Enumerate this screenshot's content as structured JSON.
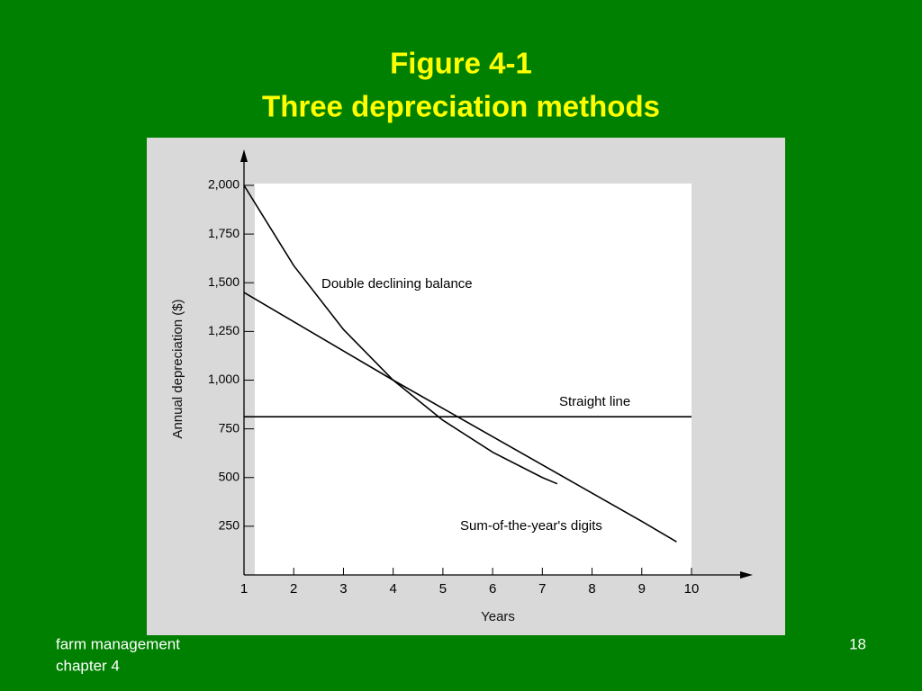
{
  "slide": {
    "title": [
      "Figure 4-1",
      "Three depreciation methods"
    ],
    "footer": [
      "farm management",
      "chapter 4"
    ],
    "page_number": 18
  },
  "chart_data": {
    "type": "line",
    "xlabel": "Years",
    "ylabel": "Annual depreciation ($)",
    "xlim": [
      1,
      10
    ],
    "ylim": [
      0,
      2000
    ],
    "xticks": [
      1,
      2,
      3,
      4,
      5,
      6,
      7,
      8,
      9,
      10
    ],
    "yticks": [
      250,
      500,
      750,
      {
        "value": 1000,
        "label": "1,000"
      },
      {
        "value": 1250,
        "label": "1,250"
      },
      {
        "value": 1500,
        "label": "1,500"
      },
      {
        "value": 1750,
        "label": "1,750"
      },
      {
        "value": 2000,
        "label": "2,000"
      }
    ],
    "series": [
      {
        "name": "Double declining balance",
        "color": "#000000",
        "x": [
          1,
          2,
          3,
          4,
          5,
          6,
          7,
          7.3
        ],
        "values": [
          2000,
          1588,
          1260,
          1000,
          794,
          630,
          500,
          468
        ]
      },
      {
        "name": "Straight line",
        "color": "#000000",
        "x": [
          1,
          10
        ],
        "values": [
          812,
          812
        ]
      },
      {
        "name": "Sum-of-the-year's digits",
        "color": "#000000",
        "x": [
          1,
          2,
          3,
          4,
          5,
          6,
          7,
          8,
          9,
          9.7
        ],
        "values": [
          1450,
          1300,
          1150,
          1000,
          855,
          710,
          565,
          420,
          275,
          170
        ]
      }
    ]
  }
}
